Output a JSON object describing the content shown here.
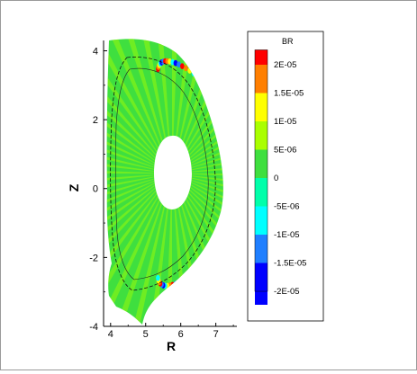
{
  "chart_data": {
    "type": "heatmap",
    "variable": "BR",
    "xlabel": "R",
    "ylabel": "Z",
    "xlim": [
      3.8,
      7.6
    ],
    "ylim": [
      -4,
      4.3
    ],
    "x_ticks": [
      "4",
      "5",
      "6",
      "7"
    ],
    "y_ticks": [
      "4",
      "2",
      "0",
      "-2",
      "-4"
    ],
    "colorbar": {
      "title": "BR",
      "levels": [
        {
          "label": "2E-05",
          "color": "#ff0000"
        },
        {
          "label": "1.5E-05",
          "color": "#ff7f00"
        },
        {
          "label": "1E-05",
          "color": "#ffff00"
        },
        {
          "label": "5E-06",
          "color": "#aaff00"
        },
        {
          "label": "0",
          "color": "#3fdf3f"
        },
        {
          "label": "-5E-06",
          "color": "#00ffaa"
        },
        {
          "label": "-1E-05",
          "color": "#00ffff"
        },
        {
          "label": "-1.5E-05",
          "color": "#1f7fff"
        },
        {
          "label": "-2E-05",
          "color": "#0000ff"
        }
      ]
    },
    "background_value": "0",
    "perturbation_band": "edge, between the separatrix and the inner boundary"
  }
}
